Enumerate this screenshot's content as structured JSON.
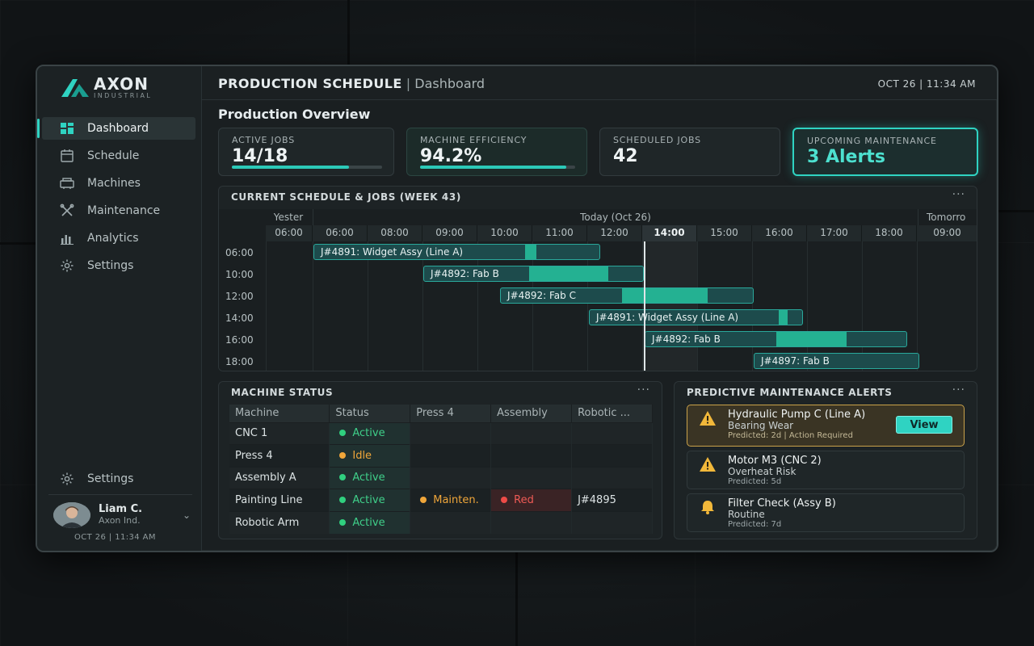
{
  "brand": {
    "name": "AXON",
    "sub": "INDUSTRIAL"
  },
  "nav": [
    {
      "label": "Dashboard",
      "icon": "dashboard-icon",
      "active": true
    },
    {
      "label": "Schedule",
      "icon": "calendar-icon"
    },
    {
      "label": "Machines",
      "icon": "machine-icon"
    },
    {
      "label": "Maintenance",
      "icon": "wrench-icon"
    },
    {
      "label": "Analytics",
      "icon": "chart-icon"
    },
    {
      "label": "Settings",
      "icon": "gear-icon"
    }
  ],
  "sidebar_footer": {
    "settings_label": "Settings",
    "user_name": "Liam C.",
    "user_org": "Axon Ind.",
    "time": "OCT 26 | 11:34 AM"
  },
  "header": {
    "title": "PRODUCTION SCHEDULE",
    "separator": "|",
    "subtitle": "Dashboard",
    "time": "OCT 26 | 11:34 AM"
  },
  "overview_title": "Production Overview",
  "kpis": {
    "active_jobs": {
      "label": "ACTIVE JOBS",
      "value": "14/18",
      "progress": 0.78
    },
    "efficiency": {
      "label": "MACHINE EFFICIENCY",
      "value": "94.2%",
      "progress": 0.942
    },
    "scheduled": {
      "label": "SCHEDULED JOBS",
      "value": "42"
    },
    "maintenance": {
      "label": "UPCOMING MAINTENANCE",
      "value": "3 Alerts"
    }
  },
  "schedule": {
    "title": "CURRENT SCHEDULE & JOBS (WEEK 43)",
    "more": "···",
    "days": {
      "yesterday": "Yester",
      "today": "Today (Oct 26)",
      "tomorrow": "Tomorro"
    },
    "hours": [
      "06:00",
      "06:00",
      "08:00",
      "09:00",
      "10:00",
      "11:00",
      "12:00",
      "14:00",
      "15:00",
      "16:00",
      "17:00",
      "18:00",
      "09:00"
    ],
    "current_hour_index": 7,
    "rows": [
      "06:00",
      "10:00",
      "12:00",
      "14:00",
      "16:00",
      "18:00"
    ],
    "jobs": [
      {
        "label": "J#4891: Widget Assy (Line A)",
        "progress_start": 0.74,
        "progress_end": 0.78
      },
      {
        "label": "J#4892: Fab B",
        "progress_start": 0.48,
        "progress_end": 0.84
      },
      {
        "label": "J#4892: Fab C",
        "progress_start": 0.48,
        "progress_end": 0.82
      },
      {
        "label": "J#4891: Widget Assy (Line A)",
        "progress_start": 0.89,
        "progress_end": 0.93
      },
      {
        "label": "J#4892: Fab B",
        "progress_start": 0.5,
        "progress_end": 0.77
      },
      {
        "label": "J#4897: Fab B",
        "progress_start": 0,
        "progress_end": 0
      }
    ]
  },
  "machine_status": {
    "title": "MACHINE STATUS",
    "more": "···",
    "columns": [
      "Machine",
      "Status",
      "Press 4",
      "Assembly",
      "Robotic ..."
    ],
    "rows": [
      {
        "machine": "CNC 1",
        "status": "Active",
        "status_color": "green"
      },
      {
        "machine": "Press 4",
        "status": "Idle",
        "status_color": "orange"
      },
      {
        "machine": "Assembly A",
        "status": "Active",
        "status_color": "green"
      },
      {
        "machine": "Painting Line",
        "status": "Active",
        "status_color": "green",
        "press": "Mainten.",
        "assembly": "Red",
        "robotic": "J#4895"
      },
      {
        "machine": "Robotic Arm",
        "status": "Active",
        "status_color": "green"
      }
    ]
  },
  "alerts": {
    "title": "PREDICTIVE MAINTENANCE ALERTS",
    "more": "···",
    "items": [
      {
        "title": "Hydraulic Pump C (Line A)",
        "subtitle": "Bearing Wear",
        "meta": "Predicted: 2d | Action Required",
        "icon": "warning-icon",
        "button": "View"
      },
      {
        "title": "Motor M3 (CNC 2)",
        "subtitle": "Overheat Risk",
        "meta": "Predicted: 5d",
        "icon": "warning-icon"
      },
      {
        "title": "Filter Check (Assy B)",
        "subtitle": "Routine",
        "meta": "Predicted: 7d",
        "icon": "bell-icon"
      }
    ]
  },
  "colors": {
    "accent": "#2fd3c2",
    "active": "#30d07f",
    "idle": "#f0a63a",
    "error": "#ee4b47"
  }
}
